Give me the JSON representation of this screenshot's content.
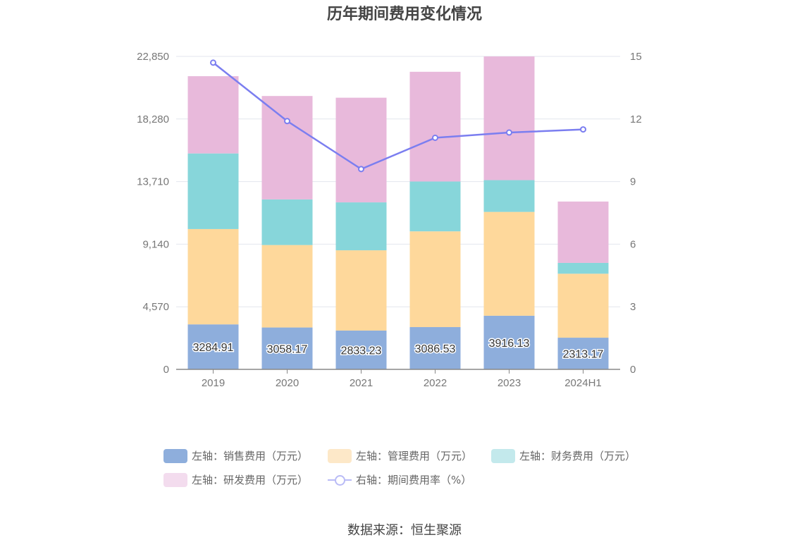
{
  "chart_data": {
    "type": "bar",
    "title": "历年期间费用变化情况",
    "categories": [
      "2019",
      "2020",
      "2021",
      "2022",
      "2023",
      "2024H1"
    ],
    "stacked": true,
    "left_axis": {
      "ticks": [
        "0",
        "4,570",
        "9,140",
        "13,710",
        "18,280",
        "22,850"
      ],
      "range": [
        0,
        22850
      ]
    },
    "right_axis": {
      "ticks": [
        "0",
        "3",
        "6",
        "9",
        "12",
        "15"
      ],
      "range": [
        0,
        15
      ]
    },
    "series": [
      {
        "name": "左轴：销售费用（万元）",
        "axis": "left",
        "type": "bar",
        "color": "#8eaedc",
        "values": [
          3284.91,
          3058.17,
          2833.23,
          3086.53,
          3916.13,
          2313.17
        ],
        "labels": [
          "3284.91",
          "3058.17",
          "2833.23",
          "3086.53",
          "3916.13",
          "2313.17"
        ]
      },
      {
        "name": "左轴：管理费用（万元）",
        "axis": "left",
        "type": "bar",
        "color": "#fed89b",
        "values": [
          6960,
          6020,
          5860,
          6990,
          7580,
          4670
        ]
      },
      {
        "name": "左轴：财务费用（万元）",
        "axis": "left",
        "type": "bar",
        "color": "#87d6da",
        "values": [
          5520,
          3330,
          3500,
          3640,
          2320,
          790
        ]
      },
      {
        "name": "左轴：研发费用（万元）",
        "axis": "left",
        "type": "bar",
        "color": "#e8b9db",
        "values": [
          5640,
          7550,
          7640,
          8010,
          9030,
          4480
        ]
      },
      {
        "name": "右轴：期间费用率（%）",
        "axis": "right",
        "type": "line",
        "color": "#7b7ef0",
        "values": [
          14.7,
          11.9,
          9.6,
          11.1,
          11.35,
          11.5
        ]
      }
    ]
  },
  "legend": {
    "items": [
      {
        "label": "左轴：销售费用（万元）",
        "color": "#8eaedc"
      },
      {
        "label": "左轴：管理费用（万元）",
        "color": "#fde8c8"
      },
      {
        "label": "左轴：财务费用（万元）",
        "color": "#c3e9ec"
      },
      {
        "label": "左轴：研发费用（万元）",
        "color": "#f3dcee"
      },
      {
        "label": "右轴：期间费用率（%）",
        "color": "#b9bbf6"
      }
    ]
  },
  "source": "数据来源：恒生聚源"
}
